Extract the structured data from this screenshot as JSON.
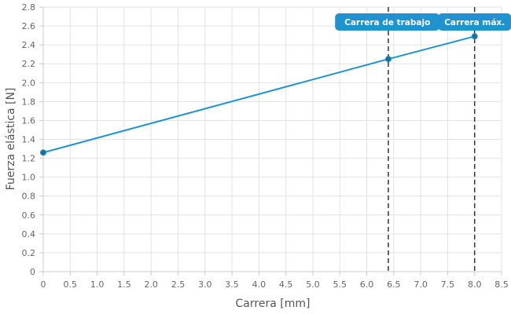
{
  "chart_data": {
    "type": "line",
    "xlabel": "Carrera [mm]",
    "ylabel": "Fuerza elástica [N]",
    "xlim": [
      0,
      8.5
    ],
    "ylim": [
      0,
      2.8
    ],
    "x_ticks": [
      "0",
      "0.5",
      "1.0",
      "1.5",
      "2.0",
      "2.5",
      "3.0",
      "3.5",
      "4.0",
      "4.5",
      "5.0",
      "5.5",
      "6.0",
      "6.5",
      "7.0",
      "7.5",
      "8.0",
      "8.5"
    ],
    "y_ticks": [
      "0",
      "0.2",
      "0.4",
      "0.6",
      "0.8",
      "1.0",
      "1.2",
      "1.4",
      "1.6",
      "1.8",
      "2.0",
      "2.2",
      "2.4",
      "2.6",
      "2.8"
    ],
    "grid": true,
    "series": [
      {
        "x": [
          0,
          6.4,
          8.0
        ],
        "y": [
          1.26,
          2.25,
          2.49
        ]
      }
    ],
    "annotations": [
      {
        "label": "Carrera de trabajo",
        "x": 6.4,
        "style": "dashed-vertical"
      },
      {
        "label": "Carrera máx.",
        "x": 8.0,
        "style": "dashed-vertical"
      }
    ],
    "colors": {
      "line": "#1f93d0",
      "marker": "#1a6f98",
      "annotation_bg": "#1f93d0",
      "annotation_line": "#333333",
      "grid": "#e2e2e2"
    }
  }
}
